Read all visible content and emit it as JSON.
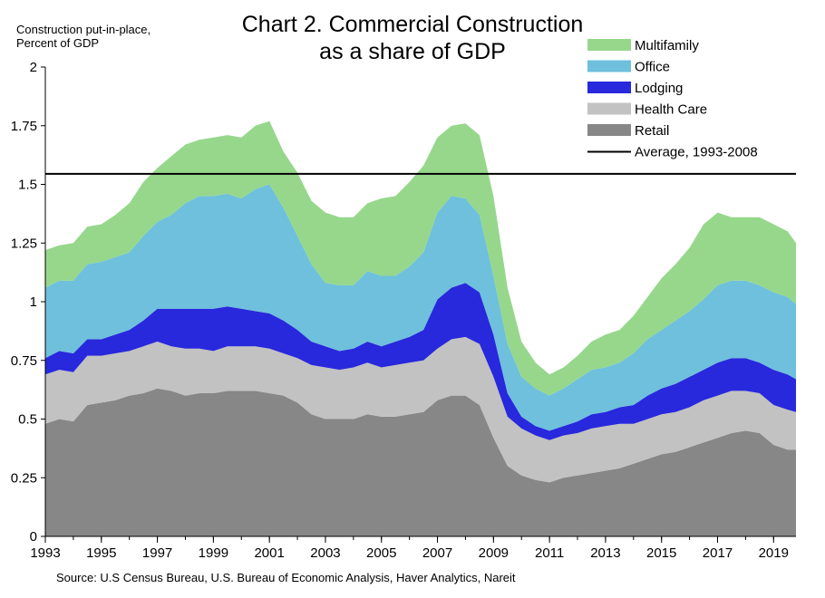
{
  "chart_data": {
    "type": "area",
    "stacked": true,
    "title_lines": [
      "Chart 2. Commercial Construction",
      "as a share of GDP"
    ],
    "ylabel_lines": [
      "Construction put-in-place,",
      "Percent of GDP"
    ],
    "xlabel": "",
    "ylim": [
      0,
      2
    ],
    "yticks": [
      0,
      0.25,
      0.5,
      0.75,
      1,
      1.25,
      1.5,
      1.75,
      2
    ],
    "ytick_labels": [
      "0",
      "0.25",
      "0.5",
      "0.75",
      "1",
      "1.25",
      "1.5",
      "1.75",
      "2"
    ],
    "xlim": [
      1993,
      2019.8
    ],
    "xticks": [
      1993,
      1995,
      1997,
      1999,
      2001,
      2003,
      2005,
      2007,
      2009,
      2011,
      2013,
      2015,
      2017,
      2019
    ],
    "xtick_labels": [
      "1993",
      "1995",
      "1997",
      "1999",
      "2001",
      "2003",
      "2005",
      "2007",
      "2009",
      "2011",
      "2013",
      "2015",
      "2017",
      "2019"
    ],
    "grid": false,
    "legend_position": "top-right",
    "x": [
      1993,
      1993.5,
      1994,
      1994.5,
      1995,
      1995.5,
      1996,
      1996.5,
      1997,
      1997.5,
      1998,
      1998.5,
      1999,
      1999.5,
      2000,
      2000.5,
      2001,
      2001.5,
      2002,
      2002.5,
      2003,
      2003.5,
      2004,
      2004.5,
      2005,
      2005.5,
      2006,
      2006.5,
      2007,
      2007.5,
      2008,
      2008.5,
      2009,
      2009.5,
      2010,
      2010.5,
      2011,
      2011.5,
      2012,
      2012.5,
      2013,
      2013.5,
      2014,
      2014.5,
      2015,
      2015.5,
      2016,
      2016.5,
      2017,
      2017.5,
      2018,
      2018.5,
      2019,
      2019.5,
      2019.8
    ],
    "series": [
      {
        "name": "Retail",
        "color": "#878787",
        "values": [
          0.48,
          0.5,
          0.49,
          0.56,
          0.57,
          0.58,
          0.6,
          0.61,
          0.63,
          0.62,
          0.6,
          0.61,
          0.61,
          0.62,
          0.62,
          0.62,
          0.61,
          0.6,
          0.57,
          0.52,
          0.5,
          0.5,
          0.5,
          0.52,
          0.51,
          0.51,
          0.52,
          0.53,
          0.58,
          0.6,
          0.6,
          0.56,
          0.42,
          0.3,
          0.26,
          0.24,
          0.23,
          0.25,
          0.26,
          0.27,
          0.28,
          0.29,
          0.31,
          0.33,
          0.35,
          0.36,
          0.38,
          0.4,
          0.42,
          0.44,
          0.45,
          0.44,
          0.39,
          0.37,
          0.37
        ]
      },
      {
        "name": "Health Care",
        "color": "#c2c2c2",
        "values": [
          0.21,
          0.21,
          0.21,
          0.21,
          0.2,
          0.2,
          0.19,
          0.2,
          0.2,
          0.19,
          0.2,
          0.19,
          0.18,
          0.19,
          0.19,
          0.19,
          0.19,
          0.18,
          0.19,
          0.21,
          0.22,
          0.21,
          0.22,
          0.22,
          0.21,
          0.22,
          0.22,
          0.22,
          0.22,
          0.24,
          0.25,
          0.26,
          0.26,
          0.21,
          0.2,
          0.19,
          0.18,
          0.18,
          0.18,
          0.19,
          0.19,
          0.19,
          0.17,
          0.17,
          0.17,
          0.17,
          0.17,
          0.18,
          0.18,
          0.18,
          0.17,
          0.17,
          0.17,
          0.17,
          0.16
        ]
      },
      {
        "name": "Lodging",
        "color": "#2828dc",
        "values": [
          0.07,
          0.08,
          0.08,
          0.07,
          0.07,
          0.08,
          0.09,
          0.11,
          0.14,
          0.16,
          0.17,
          0.17,
          0.18,
          0.17,
          0.16,
          0.15,
          0.15,
          0.14,
          0.12,
          0.1,
          0.09,
          0.08,
          0.08,
          0.09,
          0.09,
          0.1,
          0.11,
          0.13,
          0.21,
          0.22,
          0.23,
          0.22,
          0.18,
          0.1,
          0.05,
          0.04,
          0.04,
          0.04,
          0.05,
          0.06,
          0.06,
          0.07,
          0.08,
          0.1,
          0.11,
          0.12,
          0.13,
          0.13,
          0.14,
          0.14,
          0.14,
          0.13,
          0.15,
          0.15,
          0.14
        ]
      },
      {
        "name": "Office",
        "color": "#6ec0dc",
        "values": [
          0.3,
          0.3,
          0.31,
          0.32,
          0.33,
          0.33,
          0.33,
          0.36,
          0.37,
          0.4,
          0.45,
          0.48,
          0.48,
          0.48,
          0.47,
          0.52,
          0.55,
          0.48,
          0.4,
          0.33,
          0.27,
          0.28,
          0.27,
          0.3,
          0.3,
          0.28,
          0.3,
          0.33,
          0.37,
          0.39,
          0.36,
          0.33,
          0.25,
          0.21,
          0.17,
          0.16,
          0.15,
          0.16,
          0.18,
          0.19,
          0.19,
          0.19,
          0.22,
          0.24,
          0.25,
          0.27,
          0.28,
          0.3,
          0.33,
          0.33,
          0.33,
          0.33,
          0.33,
          0.33,
          0.32
        ]
      },
      {
        "name": "Multifamily",
        "color": "#96d78c",
        "values": [
          0.16,
          0.15,
          0.16,
          0.16,
          0.16,
          0.18,
          0.21,
          0.23,
          0.23,
          0.25,
          0.25,
          0.24,
          0.25,
          0.25,
          0.26,
          0.27,
          0.27,
          0.24,
          0.27,
          0.27,
          0.3,
          0.29,
          0.29,
          0.29,
          0.33,
          0.34,
          0.36,
          0.37,
          0.32,
          0.3,
          0.32,
          0.34,
          0.34,
          0.24,
          0.15,
          0.11,
          0.09,
          0.09,
          0.1,
          0.12,
          0.14,
          0.14,
          0.16,
          0.18,
          0.22,
          0.24,
          0.27,
          0.32,
          0.31,
          0.27,
          0.27,
          0.29,
          0.29,
          0.28,
          0.26
        ]
      }
    ],
    "reference_line": {
      "name": "Average, 1993-2008",
      "value": 1.545,
      "color": "#000000"
    },
    "legend_order": [
      "Multifamily",
      "Office",
      "Lodging",
      "Health Care",
      "Retail",
      "Average, 1993-2008"
    ]
  },
  "source_text": "Source: U.S Census Bureau, U.S. Bureau of Economic Analysis, Haver Analytics, Nareit"
}
